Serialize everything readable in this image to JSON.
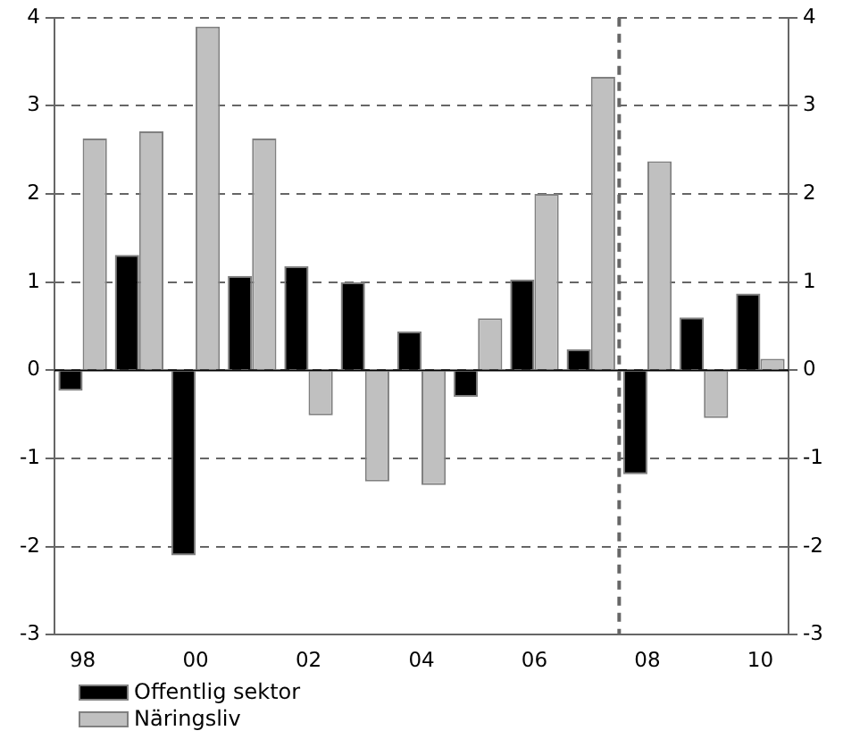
{
  "chart_data": {
    "type": "bar",
    "x": [
      1998,
      1999,
      2000,
      2001,
      2002,
      2003,
      2004,
      2005,
      2006,
      2007,
      2008,
      2009,
      2010
    ],
    "xlim": [
      1997.5,
      2010.5
    ],
    "xticks": [
      {
        "value": 1998,
        "label": "98"
      },
      {
        "value": 2000,
        "label": "00"
      },
      {
        "value": 2002,
        "label": "02"
      },
      {
        "value": 2004,
        "label": "04"
      },
      {
        "value": 2006,
        "label": "06"
      },
      {
        "value": 2008,
        "label": "08"
      },
      {
        "value": 2010,
        "label": "10"
      }
    ],
    "series": [
      {
        "name": "Offentlig sektor",
        "color": "#000000",
        "values": [
          -0.23,
          1.31,
          -2.1,
          1.07,
          1.18,
          1.0,
          0.44,
          -0.3,
          1.03,
          0.24,
          -1.18,
          0.6,
          0.87
        ]
      },
      {
        "name": "Näringsliv",
        "color": "#c0c0c0",
        "values": [
          2.63,
          2.71,
          3.9,
          2.63,
          -0.51,
          -1.26,
          -1.3,
          0.59,
          2.0,
          3.33,
          2.37,
          -0.54,
          0.13
        ]
      }
    ],
    "ylim": [
      -3,
      4
    ],
    "yticks": [
      -3,
      -2,
      -1,
      0,
      1,
      2,
      3,
      4
    ],
    "y2lim": [
      -3,
      4
    ],
    "y2ticks": [
      -3,
      -2,
      -1,
      0,
      1,
      2,
      3,
      4
    ],
    "ref_lines": [
      {
        "axis": "x",
        "value": 2007.5,
        "color": "#666666",
        "line_style": "dashed"
      }
    ],
    "grid": "y",
    "legend": "bottom left"
  }
}
